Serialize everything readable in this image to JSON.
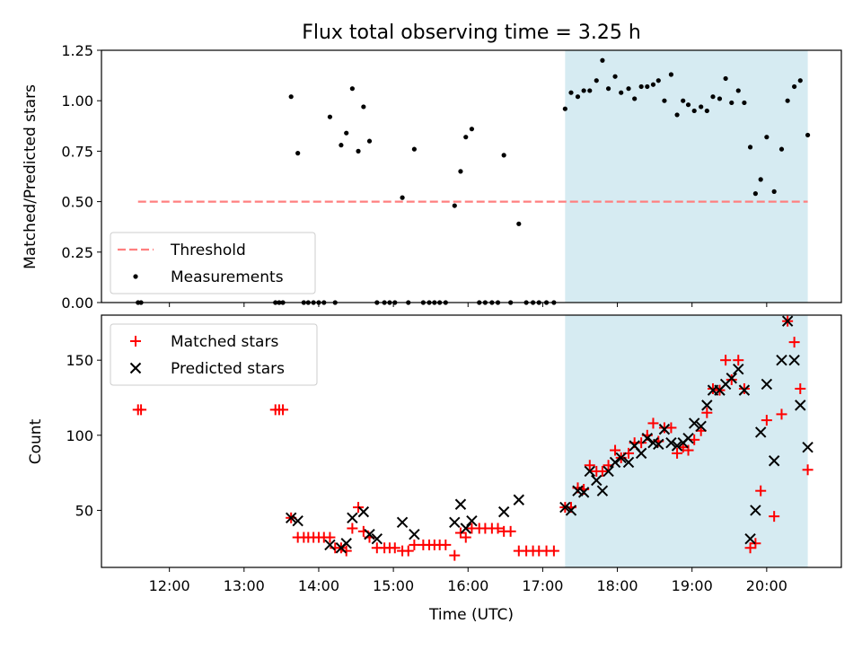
{
  "figure": {
    "title": "Flux total observing time = 3.25 h",
    "xlabel": "Time (UTC)"
  },
  "chart_data": [
    {
      "type": "scatter",
      "panel": "top",
      "ylabel": "Matched/Predicted stars",
      "xlabel": "Time (UTC)",
      "xlim": [
        11.09,
        21.0
      ],
      "ylim": [
        0,
        1.25
      ],
      "yticks": [
        0.0,
        0.25,
        0.5,
        0.75,
        1.0,
        1.25
      ],
      "ytick_labels": [
        "0.00",
        "0.25",
        "0.50",
        "0.75",
        "1.00",
        "1.25"
      ],
      "xticks": [
        12,
        13,
        14,
        15,
        16,
        17,
        18,
        19,
        20
      ],
      "xtick_labels": [],
      "grid": false,
      "legend": {
        "placement": "lower-left",
        "entries": [
          "Threshold",
          "Measurements"
        ]
      },
      "threshold": {
        "name": "Threshold",
        "value": 0.5,
        "x_range": [
          11.58,
          20.55
        ],
        "color": "#ff7f7f",
        "style": "dashed"
      },
      "highlight_span": {
        "x_range": [
          17.3,
          20.55
        ],
        "color": "#add8e6"
      },
      "series": [
        {
          "name": "Measurements",
          "color": "#000000",
          "x": [
            11.58,
            11.62,
            13.42,
            13.47,
            13.52,
            13.63,
            13.72,
            13.8,
            13.86,
            13.93,
            14.0,
            14.07,
            14.15,
            14.22,
            14.3,
            14.37,
            14.45,
            14.53,
            14.6,
            14.68,
            14.78,
            14.88,
            14.95,
            15.02,
            15.12,
            15.2,
            15.28,
            15.4,
            15.48,
            15.55,
            15.62,
            15.7,
            15.82,
            15.9,
            15.97,
            16.05,
            16.15,
            16.23,
            16.32,
            16.4,
            16.48,
            16.57,
            16.68,
            16.78,
            16.87,
            16.95,
            17.05,
            17.15,
            17.3,
            17.38,
            17.47,
            17.55,
            17.63,
            17.72,
            17.8,
            17.88,
            17.97,
            18.05,
            18.15,
            18.23,
            18.32,
            18.4,
            18.48,
            18.55,
            18.63,
            18.72,
            18.8,
            18.88,
            18.95,
            19.03,
            19.12,
            19.2,
            19.28,
            19.37,
            19.45,
            19.53,
            19.62,
            19.7,
            19.78,
            19.85,
            19.92,
            20.0,
            20.1,
            20.2,
            20.28,
            20.37,
            20.45,
            20.55
          ],
          "y": [
            0.0,
            0.0,
            0.0,
            0.0,
            0.0,
            1.02,
            0.74,
            0.0,
            0.0,
            0.0,
            0.0,
            0.0,
            0.92,
            0.0,
            0.78,
            0.84,
            1.06,
            0.75,
            0.97,
            0.8,
            0.0,
            0.0,
            0.0,
            0.0,
            0.52,
            0.0,
            0.76,
            0.0,
            0.0,
            0.0,
            0.0,
            0.0,
            0.48,
            0.65,
            0.82,
            0.86,
            0.0,
            0.0,
            0.0,
            0.0,
            0.73,
            0.0,
            0.39,
            0.0,
            0.0,
            0.0,
            0.0,
            0.0,
            0.96,
            1.04,
            1.02,
            1.05,
            1.05,
            1.1,
            1.2,
            1.06,
            1.12,
            1.04,
            1.06,
            1.01,
            1.07,
            1.07,
            1.08,
            1.1,
            1.0,
            1.13,
            0.93,
            1.0,
            0.98,
            0.95,
            0.97,
            0.95,
            1.02,
            1.01,
            1.11,
            0.99,
            1.05,
            0.99,
            0.77,
            0.54,
            0.61,
            0.82,
            0.55,
            0.76,
            1.0,
            1.07,
            1.1,
            0.83
          ]
        }
      ]
    },
    {
      "type": "scatter",
      "panel": "bottom",
      "ylabel": "Count",
      "xlabel": "Time (UTC)",
      "xlim": [
        11.09,
        21.0
      ],
      "ylim": [
        12,
        180
      ],
      "yticks": [
        50,
        100,
        150
      ],
      "ytick_labels": [
        "50",
        "100",
        "150"
      ],
      "xticks": [
        12,
        13,
        14,
        15,
        16,
        17,
        18,
        19,
        20
      ],
      "xtick_labels": [
        "12:00",
        "13:00",
        "14:00",
        "15:00",
        "16:00",
        "17:00",
        "18:00",
        "19:00",
        "20:00"
      ],
      "grid": false,
      "legend": {
        "placement": "top-left",
        "entries": [
          "Matched stars",
          "Predicted stars"
        ]
      },
      "highlight_span": {
        "x_range": [
          17.3,
          20.55
        ],
        "color": "#add8e6"
      },
      "series": [
        {
          "name": "Matched stars",
          "color": "#ff0000",
          "marker": "plus",
          "x": [
            11.58,
            11.62,
            13.42,
            13.47,
            13.52,
            13.63,
            13.72,
            13.8,
            13.86,
            13.93,
            14.0,
            14.07,
            14.15,
            14.22,
            14.3,
            14.37,
            14.45,
            14.53,
            14.6,
            14.68,
            14.78,
            14.88,
            14.95,
            15.02,
            15.12,
            15.2,
            15.28,
            15.4,
            15.48,
            15.55,
            15.62,
            15.7,
            15.82,
            15.9,
            15.97,
            16.05,
            16.15,
            16.23,
            16.32,
            16.4,
            16.48,
            16.57,
            16.68,
            16.78,
            16.87,
            16.95,
            17.05,
            17.15,
            17.3,
            17.38,
            17.47,
            17.55,
            17.63,
            17.72,
            17.8,
            17.88,
            17.97,
            18.05,
            18.15,
            18.23,
            18.32,
            18.4,
            18.48,
            18.55,
            18.63,
            18.72,
            18.8,
            18.88,
            18.95,
            19.03,
            19.12,
            19.2,
            19.28,
            19.37,
            19.45,
            19.53,
            19.62,
            19.7,
            19.78,
            19.85,
            19.92,
            20.0,
            20.1,
            20.2,
            20.28,
            20.37,
            20.45,
            20.55
          ],
          "y": [
            117,
            117,
            117,
            117,
            117,
            45,
            32,
            32,
            32,
            32,
            32,
            32,
            32,
            25,
            25,
            23,
            38,
            52,
            36,
            32,
            25,
            25,
            25,
            25,
            23,
            23,
            27,
            27,
            27,
            27,
            27,
            27,
            20,
            35,
            32,
            38,
            38,
            38,
            38,
            38,
            36,
            36,
            23,
            23,
            23,
            23,
            23,
            23,
            52,
            52,
            65,
            64,
            80,
            76,
            76,
            80,
            90,
            85,
            88,
            95,
            95,
            100,
            108,
            96,
            105,
            105,
            88,
            92,
            90,
            97,
            103,
            115,
            131,
            130,
            150,
            137,
            150,
            131,
            25,
            28,
            63,
            110,
            46,
            114,
            176,
            162,
            131,
            77
          ]
        },
        {
          "name": "Predicted stars",
          "color": "#000000",
          "marker": "x",
          "x": [
            13.63,
            13.72,
            14.15,
            14.3,
            14.37,
            14.45,
            14.6,
            14.68,
            14.78,
            15.12,
            15.28,
            15.82,
            15.9,
            15.97,
            16.05,
            16.48,
            16.68,
            17.3,
            17.38,
            17.47,
            17.55,
            17.63,
            17.72,
            17.8,
            17.88,
            17.97,
            18.05,
            18.15,
            18.23,
            18.32,
            18.4,
            18.48,
            18.55,
            18.63,
            18.72,
            18.8,
            18.88,
            18.95,
            19.03,
            19.12,
            19.2,
            19.28,
            19.37,
            19.45,
            19.53,
            19.62,
            19.7,
            19.78,
            19.85,
            19.92,
            20.0,
            20.1,
            20.2,
            20.28,
            20.37,
            20.45,
            20.55
          ],
          "y": [
            45,
            43,
            27,
            25,
            28,
            45,
            49,
            34,
            31,
            42,
            34,
            42,
            54,
            38,
            43,
            49,
            57,
            52,
            50,
            63,
            62,
            76,
            70,
            63,
            76,
            82,
            85,
            82,
            93,
            88,
            98,
            95,
            94,
            104,
            95,
            93,
            95,
            98,
            108,
            106,
            120,
            130,
            130,
            134,
            138,
            144,
            130,
            31,
            50,
            102,
            134,
            83,
            150,
            176,
            150,
            120,
            92
          ]
        }
      ]
    }
  ]
}
